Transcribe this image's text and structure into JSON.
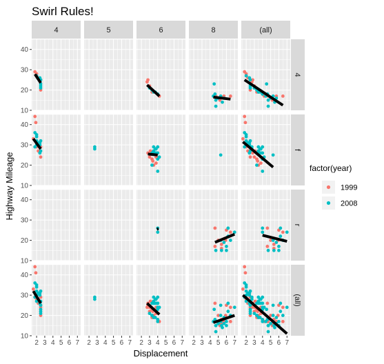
{
  "chart_data": {
    "type": "scatter",
    "title": "Swirl Rules!",
    "xlabel": "Displacement",
    "ylabel": "Highway Mileage",
    "xlim": [
      1.4,
      7.4
    ],
    "ylim": [
      10,
      45
    ],
    "x_ticks": [
      2,
      3,
      4,
      5,
      6,
      7
    ],
    "y_ticks": [
      10,
      20,
      30,
      40
    ],
    "grid": true,
    "col_facets": [
      "4",
      "5",
      "6",
      "8",
      "(all)"
    ],
    "row_facets": [
      "4",
      "f",
      "r",
      "(all)"
    ],
    "legend": {
      "title": "factor(year)",
      "position": "right",
      "entries": [
        {
          "label": "1999",
          "color": "#F8766D"
        },
        {
          "label": "2008",
          "color": "#00BFC4"
        }
      ]
    },
    "colors": {
      "1999": "#F8766D",
      "2008": "#00BFC4",
      "fit": "#000000",
      "panel_bg": "#EBEBEB",
      "strip_bg": "#D9D9D9"
    },
    "series": [
      {
        "name": "1999",
        "points": [
          [
            1.8,
            29,
            "4",
            "4"
          ],
          [
            2.0,
            28,
            "4",
            "4"
          ],
          [
            2.2,
            26,
            "4",
            "4"
          ],
          [
            2.5,
            25,
            "4",
            "4"
          ],
          [
            2.5,
            20,
            "4",
            "4"
          ],
          [
            2.7,
            24,
            "6",
            "4"
          ],
          [
            2.8,
            25,
            "6",
            "4"
          ],
          [
            3.0,
            22,
            "6",
            "4"
          ],
          [
            3.3,
            19,
            "6",
            "4"
          ],
          [
            3.5,
            19,
            "6",
            "4"
          ],
          [
            4.0,
            18,
            "6",
            "4"
          ],
          [
            4.2,
            17,
            "6",
            "4"
          ],
          [
            4.7,
            17,
            "8",
            "4"
          ],
          [
            5.2,
            15,
            "8",
            "4"
          ],
          [
            5.7,
            17,
            "8",
            "4"
          ],
          [
            6.5,
            17,
            "8",
            "4"
          ],
          [
            1.6,
            33,
            "4",
            "f"
          ],
          [
            1.8,
            44,
            "4",
            "f"
          ],
          [
            1.9,
            41,
            "4",
            "f"
          ],
          [
            2.0,
            29,
            "4",
            "f"
          ],
          [
            2.2,
            27,
            "4",
            "f"
          ],
          [
            2.4,
            27,
            "4",
            "f"
          ],
          [
            2.5,
            24,
            "4",
            "f"
          ],
          [
            2.5,
            29,
            "4",
            "f"
          ],
          [
            2.8,
            26,
            "6",
            "f"
          ],
          [
            3.0,
            24,
            "6",
            "f"
          ],
          [
            3.1,
            27,
            "6",
            "f"
          ],
          [
            3.3,
            23,
            "6",
            "f"
          ],
          [
            3.4,
            22,
            "6",
            "f"
          ],
          [
            3.8,
            21,
            "6",
            "f"
          ],
          [
            3.8,
            24,
            "6",
            "f"
          ],
          [
            3.5,
            20,
            "6",
            "f"
          ],
          [
            4.6,
            26,
            "8",
            "r"
          ],
          [
            5.4,
            18,
            "8",
            "r"
          ],
          [
            4.6,
            17,
            "8",
            "r"
          ],
          [
            5.4,
            16,
            "8",
            "r"
          ],
          [
            5.9,
            20,
            "8",
            "r"
          ],
          [
            6.0,
            25,
            "8",
            "r"
          ],
          [
            6.5,
            24,
            "8",
            "r"
          ],
          [
            5.0,
            20,
            "8",
            "r"
          ]
        ]
      },
      {
        "name": "2008",
        "points": [
          [
            2.0,
            27,
            "4",
            "4"
          ],
          [
            2.4,
            26,
            "4",
            "4"
          ],
          [
            2.5,
            23,
            "4",
            "4"
          ],
          [
            2.5,
            22,
            "4",
            "4"
          ],
          [
            2.5,
            21,
            "4",
            "4"
          ],
          [
            2.5,
            25,
            "4",
            "4"
          ],
          [
            3.0,
            21,
            "6",
            "4"
          ],
          [
            3.5,
            19,
            "6",
            "4"
          ],
          [
            3.7,
            19,
            "6",
            "4"
          ],
          [
            4.0,
            18,
            "6",
            "4"
          ],
          [
            3.3,
            20,
            "6",
            "4"
          ],
          [
            4.4,
            17,
            "8",
            "4"
          ],
          [
            4.6,
            18,
            "8",
            "4"
          ],
          [
            4.7,
            15,
            "8",
            "4"
          ],
          [
            4.7,
            12,
            "8",
            "4"
          ],
          [
            5.0,
            16,
            "8",
            "4"
          ],
          [
            5.3,
            17,
            "8",
            "4"
          ],
          [
            5.7,
            16,
            "8",
            "4"
          ],
          [
            4.5,
            23,
            "8",
            "4"
          ],
          [
            5.5,
            14,
            "8",
            "4"
          ],
          [
            1.8,
            29,
            "4",
            "f"
          ],
          [
            1.8,
            36,
            "4",
            "f"
          ],
          [
            2.0,
            35,
            "4",
            "f"
          ],
          [
            2.0,
            34,
            "4",
            "f"
          ],
          [
            2.0,
            30,
            "4",
            "f"
          ],
          [
            2.0,
            32,
            "4",
            "f"
          ],
          [
            2.2,
            31,
            "4",
            "f"
          ],
          [
            2.4,
            26,
            "4",
            "f"
          ],
          [
            2.4,
            31,
            "4",
            "f"
          ],
          [
            2.4,
            30,
            "4",
            "f"
          ],
          [
            2.5,
            27,
            "4",
            "f"
          ],
          [
            2.5,
            32,
            "4",
            "f"
          ],
          [
            2.7,
            29,
            "5",
            "f"
          ],
          [
            2.7,
            28,
            "5",
            "f"
          ],
          [
            3.3,
            26,
            "6",
            "f"
          ],
          [
            3.5,
            26,
            "6",
            "f"
          ],
          [
            3.5,
            27,
            "6",
            "f"
          ],
          [
            3.5,
            29,
            "6",
            "f"
          ],
          [
            3.6,
            26,
            "6",
            "f"
          ],
          [
            3.7,
            28,
            "6",
            "f"
          ],
          [
            3.8,
            26,
            "6",
            "f"
          ],
          [
            3.8,
            28,
            "6",
            "f"
          ],
          [
            4.0,
            23,
            "6",
            "f"
          ],
          [
            4.0,
            26,
            "6",
            "f"
          ],
          [
            4.0,
            29,
            "6",
            "f"
          ],
          [
            4.2,
            24,
            "6",
            "f"
          ],
          [
            4.0,
            17,
            "6",
            "f"
          ],
          [
            3.3,
            20,
            "6",
            "f"
          ],
          [
            5.3,
            25,
            "8",
            "f"
          ],
          [
            4.0,
            26,
            "6",
            "r"
          ],
          [
            4.0,
            24,
            "6",
            "r"
          ],
          [
            5.3,
            20,
            "8",
            "r"
          ],
          [
            5.7,
            19,
            "8",
            "r"
          ],
          [
            6.0,
            15,
            "8",
            "r"
          ],
          [
            6.2,
            26,
            "8",
            "r"
          ],
          [
            6.2,
            22,
            "8",
            "r"
          ],
          [
            6.5,
            20,
            "8",
            "r"
          ],
          [
            7.0,
            24,
            "8",
            "r"
          ],
          [
            5.4,
            15,
            "8",
            "r"
          ],
          [
            6.0,
            17,
            "8",
            "r"
          ],
          [
            4.7,
            15,
            "8",
            "r"
          ]
        ]
      }
    ],
    "fits": [
      {
        "col": "4",
        "row": "4",
        "x": [
          1.8,
          2.5
        ],
        "y": [
          27.8,
          23.5
        ]
      },
      {
        "col": "6",
        "row": "4",
        "x": [
          2.7,
          4.2
        ],
        "y": [
          22.5,
          17
        ]
      },
      {
        "col": "8",
        "row": "4",
        "x": [
          4.4,
          6.5
        ],
        "y": [
          16.5,
          15.5
        ]
      },
      {
        "col": "(all)",
        "row": "4",
        "x": [
          1.8,
          6.5
        ],
        "y": [
          25,
          12.5
        ]
      },
      {
        "col": "4",
        "row": "f",
        "x": [
          1.6,
          2.5
        ],
        "y": [
          33,
          28
        ]
      },
      {
        "col": "6",
        "row": "f",
        "x": [
          2.8,
          4.0
        ],
        "y": [
          25.5,
          25
        ]
      },
      {
        "col": "(all)",
        "row": "f",
        "x": [
          1.6,
          5.3
        ],
        "y": [
          31.5,
          19
        ]
      },
      {
        "col": "6",
        "row": "r",
        "x": [
          3.9,
          4.1
        ],
        "y": [
          25.5,
          25.7
        ]
      },
      {
        "col": "8",
        "row": "r",
        "x": [
          4.6,
          7.0
        ],
        "y": [
          19,
          23
        ]
      },
      {
        "col": "(all)",
        "row": "r",
        "x": [
          4.0,
          7.0
        ],
        "y": [
          22.5,
          19.5
        ]
      },
      {
        "col": "4",
        "row": "(all)",
        "x": [
          1.6,
          2.5
        ],
        "y": [
          32,
          26
        ]
      },
      {
        "col": "6",
        "row": "(all)",
        "x": [
          2.7,
          4.2
        ],
        "y": [
          26,
          20.5
        ]
      },
      {
        "col": "8",
        "row": "(all)",
        "x": [
          4.4,
          7.0
        ],
        "y": [
          16.5,
          20
        ]
      },
      {
        "col": "(all)",
        "row": "(all)",
        "x": [
          1.6,
          7.0
        ],
        "y": [
          30,
          11
        ]
      }
    ]
  }
}
